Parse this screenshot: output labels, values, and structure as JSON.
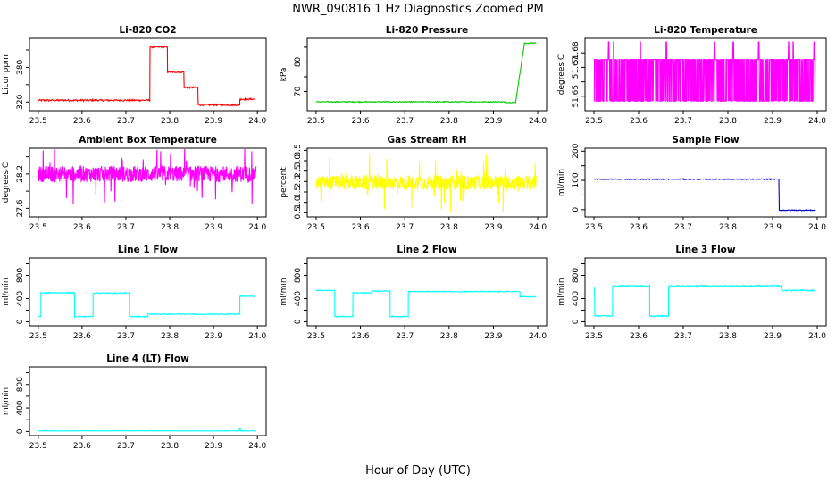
{
  "figure": {
    "title": "NWR_090816  1 Hz Diagnostics Zoomed PM",
    "xlabel": "Hour of Day (UTC)"
  },
  "chart_data": [
    {
      "type": "line",
      "title": "Li-820 CO2",
      "ylabel": "Licor ppm",
      "color": "#ff0000",
      "xlim": [
        23.5,
        24.0
      ],
      "ylim": [
        305,
        430
      ],
      "xticks": [
        "23.5",
        "23.6",
        "23.7",
        "23.8",
        "23.9",
        "24.0"
      ],
      "yticks": [
        320,
        350,
        380,
        410
      ],
      "ytick_labels": [
        "320",
        "",
        "380",
        ""
      ],
      "noise": 1.5,
      "segments": [
        [
          23.5,
          23.755,
          323
        ],
        [
          23.755,
          23.795,
          415
        ],
        [
          23.795,
          23.833,
          372
        ],
        [
          23.833,
          23.865,
          345
        ],
        [
          23.865,
          23.96,
          315
        ],
        [
          23.96,
          23.997,
          325
        ]
      ]
    },
    {
      "type": "line",
      "title": "Li-820 Pressure",
      "ylabel": "kPa",
      "color": "#00cc00",
      "xlim": [
        23.5,
        24.0
      ],
      "ylim": [
        63.5,
        88
      ],
      "xticks": [
        "23.5",
        "23.6",
        "23.7",
        "23.8",
        "23.9",
        "24.0"
      ],
      "yticks": [
        70,
        75,
        80,
        85
      ],
      "ytick_labels": [
        "70",
        "",
        "80",
        ""
      ],
      "noise": 0.15,
      "segments": [
        [
          23.5,
          23.925,
          66.5
        ],
        [
          23.925,
          23.95,
          66.3
        ]
      ],
      "ramp": [
        [
          23.95,
          66.3
        ],
        [
          23.97,
          86.3
        ],
        [
          23.997,
          86.5
        ]
      ]
    },
    {
      "type": "noise",
      "title": "Li-820 Temperature",
      "ylabel": "degrees C",
      "color": "#ff00ff",
      "xlim": [
        23.5,
        24.0
      ],
      "ylim": [
        51.64,
        51.69
      ],
      "xticks": [
        "23.5",
        "23.6",
        "23.7",
        "23.8",
        "23.9",
        "24.0"
      ],
      "yticks": [
        51.65,
        51.66,
        51.67,
        51.68
      ],
      "ytick_labels": [
        "51.65",
        "",
        "51.67",
        "51.68"
      ],
      "band": [
        51.6466,
        51.6755
      ],
      "spikes": [
        23.533,
        23.544,
        23.604,
        23.662,
        23.77,
        23.812,
        23.869,
        23.936,
        23.946,
        23.993
      ],
      "spike_top": 51.6875
    },
    {
      "type": "noise",
      "title": "Ambient Box Temperature",
      "ylabel": "degrees C",
      "color": "#ff00ff",
      "xlim": [
        23.5,
        24.0
      ],
      "ylim": [
        27.45,
        28.65
      ],
      "xticks": [
        "23.5",
        "23.6",
        "23.7",
        "23.8",
        "23.9",
        "24.0"
      ],
      "yticks": [
        27.6,
        27.9,
        28.2,
        28.5
      ],
      "ytick_labels": [
        "27.6",
        "",
        "28.2",
        ""
      ],
      "center": 28.2,
      "amp": 0.14,
      "outlier": 0.55
    },
    {
      "type": "noise",
      "title": "Gas Stream RH",
      "ylabel": "percent",
      "color": "#ffff00",
      "xlim": [
        23.5,
        24.0
      ],
      "ylim": [
        0.3,
        3.6
      ],
      "xticks": [
        "23.5",
        "23.6",
        "23.7",
        "23.8",
        "23.9",
        "24.0"
      ],
      "yticks": [
        0.5,
        1.0,
        1.5,
        2.0,
        2.5,
        3.0,
        3.5
      ],
      "ytick_labels": [
        "0.5",
        "1.0",
        "1.5",
        "2.0",
        "2.5",
        "3.0",
        "3.5"
      ],
      "center": 1.95,
      "amp": 0.35,
      "outlier": 1.4
    },
    {
      "type": "line",
      "title": "Sample Flow",
      "ylabel": "ml/min",
      "color": "#0000cc",
      "xlim": [
        23.5,
        24.0
      ],
      "ylim": [
        -25,
        210
      ],
      "xticks": [
        "23.5",
        "23.6",
        "23.7",
        "23.8",
        "23.9",
        "24.0"
      ],
      "yticks": [
        0,
        50,
        100,
        150,
        200
      ],
      "ytick_labels": [
        "0",
        "",
        "100",
        "",
        "200"
      ],
      "noise": 1.5,
      "segments": [
        [
          23.5,
          23.915,
          104
        ],
        [
          23.915,
          23.997,
          -2
        ]
      ]
    },
    {
      "type": "line",
      "title": "Line 1 Flow",
      "ylabel": "ml/min",
      "color": "#00ffff",
      "xlim": [
        23.5,
        24.0
      ],
      "ylim": [
        -70,
        1100
      ],
      "xticks": [
        "23.5",
        "23.6",
        "23.7",
        "23.8",
        "23.9",
        "24.0"
      ],
      "yticks": [
        0,
        200,
        400,
        600,
        800,
        1000
      ],
      "ytick_labels": [
        "0",
        "",
        "400",
        "",
        "800",
        ""
      ],
      "noise": 8,
      "segments": [
        [
          23.5,
          23.506,
          90
        ],
        [
          23.506,
          23.583,
          500
        ],
        [
          23.583,
          23.625,
          90
        ],
        [
          23.625,
          23.708,
          495
        ],
        [
          23.708,
          23.75,
          90
        ],
        [
          23.75,
          23.96,
          130
        ],
        [
          23.96,
          23.997,
          440
        ]
      ]
    },
    {
      "type": "line",
      "title": "Line 2 Flow",
      "ylabel": "ml/min",
      "color": "#00ffff",
      "xlim": [
        23.5,
        24.0
      ],
      "ylim": [
        -70,
        1100
      ],
      "xticks": [
        "23.5",
        "23.6",
        "23.7",
        "23.8",
        "23.9",
        "24.0"
      ],
      "yticks": [
        0,
        200,
        400,
        600,
        800,
        1000
      ],
      "ytick_labels": [
        "0",
        "",
        "400",
        "",
        "800",
        ""
      ],
      "noise": 8,
      "segments": [
        [
          23.5,
          23.542,
          540
        ],
        [
          23.542,
          23.583,
          90
        ],
        [
          23.583,
          23.625,
          500
        ],
        [
          23.625,
          23.667,
          530
        ],
        [
          23.667,
          23.708,
          90
        ],
        [
          23.708,
          23.96,
          520
        ],
        [
          23.96,
          23.997,
          430
        ]
      ]
    },
    {
      "type": "line",
      "title": "Line 3 Flow",
      "ylabel": "ml/min",
      "color": "#00ffff",
      "xlim": [
        23.5,
        24.0
      ],
      "ylim": [
        -70,
        1100
      ],
      "xticks": [
        "23.5",
        "23.6",
        "23.7",
        "23.8",
        "23.9",
        "24.0"
      ],
      "yticks": [
        0,
        200,
        400,
        600,
        800,
        1000
      ],
      "ytick_labels": [
        "0",
        "",
        "400",
        "",
        "800",
        ""
      ],
      "noise": 10,
      "segments": [
        [
          23.5,
          23.502,
          580
        ],
        [
          23.502,
          23.542,
          100
        ],
        [
          23.542,
          23.625,
          620
        ],
        [
          23.625,
          23.667,
          100
        ],
        [
          23.667,
          23.92,
          620
        ],
        [
          23.92,
          23.997,
          540
        ]
      ]
    },
    {
      "type": "line",
      "title": "Line 4 (LT) Flow",
      "ylabel": "ml/min",
      "color": "#00ffff",
      "xlim": [
        23.5,
        24.0
      ],
      "ylim": [
        -70,
        1100
      ],
      "xticks": [
        "23.5",
        "23.6",
        "23.7",
        "23.8",
        "23.9",
        "24.0"
      ],
      "yticks": [
        0,
        200,
        400,
        600,
        800,
        1000
      ],
      "ytick_labels": [
        "0",
        "",
        "400",
        "",
        "800",
        ""
      ],
      "noise": 3,
      "segments": [
        [
          23.5,
          23.997,
          10
        ]
      ],
      "bump": [
        23.96,
        60
      ]
    }
  ]
}
